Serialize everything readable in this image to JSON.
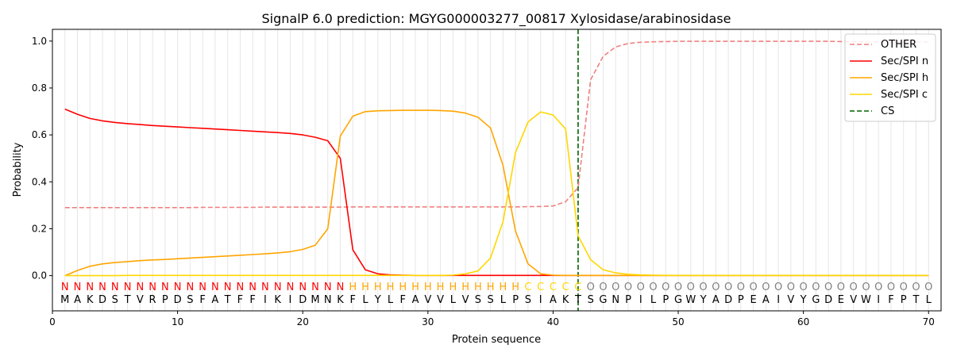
{
  "chart_data": {
    "type": "line",
    "title": "SignalP 6.0 prediction: MGYG000003277_00817 Xylosidase/arabinosidase",
    "xlabel": "Protein sequence",
    "ylabel": "Probability",
    "xlim": [
      0,
      71
    ],
    "ylim": [
      -0.15,
      1.05
    ],
    "x_ticks": [
      0,
      10,
      20,
      30,
      40,
      50,
      60,
      70
    ],
    "y_ticks": [
      0.0,
      0.2,
      0.4,
      0.6,
      0.8,
      1.0
    ],
    "y_tick_labels": [
      "0.0",
      "0.2",
      "0.4",
      "0.6",
      "0.8",
      "1.0"
    ],
    "grid": "vertical lines at each residue",
    "legend_position": "top-right",
    "sequence": [
      "M",
      "A",
      "K",
      "D",
      "S",
      "T",
      "V",
      "R",
      "P",
      "D",
      "S",
      "F",
      "A",
      "T",
      "F",
      "F",
      "I",
      "K",
      "I",
      "D",
      "M",
      "N",
      "K",
      "F",
      "L",
      "Y",
      "L",
      "F",
      "A",
      "V",
      "V",
      "L",
      "V",
      "S",
      "S",
      "L",
      "P",
      "S",
      "I",
      "A",
      "K",
      "T",
      "S",
      "G",
      "N",
      "P",
      "I",
      "L",
      "P",
      "G",
      "W",
      "Y",
      "A",
      "D",
      "P",
      "E",
      "A",
      "I",
      "V",
      "Y",
      "G",
      "D",
      "E",
      "V",
      "W",
      "I",
      "F",
      "P",
      "T",
      "L"
    ],
    "region_labels": [
      "N",
      "N",
      "N",
      "N",
      "N",
      "N",
      "N",
      "N",
      "N",
      "N",
      "N",
      "N",
      "N",
      "N",
      "N",
      "N",
      "N",
      "N",
      "N",
      "N",
      "N",
      "N",
      "N",
      "H",
      "H",
      "H",
      "H",
      "H",
      "H",
      "H",
      "H",
      "H",
      "H",
      "H",
      "H",
      "H",
      "H",
      "C",
      "C",
      "C",
      "C",
      "C",
      "O",
      "O",
      "O",
      "O",
      "O",
      "O",
      "O",
      "O",
      "O",
      "O",
      "O",
      "O",
      "O",
      "O",
      "O",
      "O",
      "O",
      "O",
      "O",
      "O",
      "O",
      "O",
      "O",
      "O",
      "O",
      "O",
      "O",
      "O"
    ],
    "region_colors": {
      "N": "#ff0000",
      "H": "#ffa500",
      "C": "#ffd700",
      "O": "#808080"
    },
    "series": [
      {
        "name": "OTHER",
        "color": "#f08080",
        "dash": true,
        "values": [
          0.29,
          0.29,
          0.29,
          0.29,
          0.29,
          0.29,
          0.29,
          0.29,
          0.29,
          0.29,
          0.29,
          0.291,
          0.291,
          0.291,
          0.291,
          0.291,
          0.292,
          0.292,
          0.292,
          0.292,
          0.292,
          0.292,
          0.292,
          0.293,
          0.293,
          0.293,
          0.293,
          0.293,
          0.293,
          0.293,
          0.293,
          0.293,
          0.293,
          0.293,
          0.293,
          0.293,
          0.293,
          0.294,
          0.295,
          0.297,
          0.315,
          0.375,
          0.835,
          0.935,
          0.975,
          0.99,
          0.995,
          0.997,
          0.998,
          0.999,
          0.999,
          0.999,
          0.999,
          0.999,
          0.999,
          0.999,
          0.999,
          0.999,
          0.999,
          0.999,
          0.999,
          0.999,
          0.998,
          0.997,
          0.996,
          0.996,
          0.996,
          0.996,
          0.996,
          0.996
        ]
      },
      {
        "name": "Sec/SPI n",
        "color": "#ff0000",
        "dash": false,
        "values": [
          0.71,
          0.688,
          0.67,
          0.66,
          0.653,
          0.648,
          0.644,
          0.64,
          0.637,
          0.634,
          0.631,
          0.628,
          0.625,
          0.622,
          0.619,
          0.616,
          0.613,
          0.61,
          0.606,
          0.6,
          0.59,
          0.575,
          0.5,
          0.11,
          0.025,
          0.008,
          0.003,
          0.002,
          0.001,
          0.001,
          0.001,
          0.001,
          0.001,
          0.001,
          0.001,
          0.001,
          0.001,
          0.001,
          0.001,
          0.001,
          0.001,
          0.001,
          0.001,
          0.001,
          0.001,
          0.001,
          0.001,
          0.001,
          0.001,
          0.001,
          0.001,
          0.001,
          0.001,
          0.001,
          0.001,
          0.001,
          0.001,
          0.001,
          0.001,
          0.001,
          0.001,
          0.001,
          0.001,
          0.001,
          0.001,
          0.001,
          0.001,
          0.001,
          0.001,
          0.001
        ]
      },
      {
        "name": "Sec/SPI h",
        "color": "#ffa500",
        "dash": false,
        "values": [
          0.0,
          0.022,
          0.04,
          0.05,
          0.056,
          0.06,
          0.064,
          0.067,
          0.069,
          0.072,
          0.075,
          0.078,
          0.081,
          0.084,
          0.087,
          0.09,
          0.093,
          0.097,
          0.102,
          0.112,
          0.13,
          0.2,
          0.595,
          0.68,
          0.699,
          0.703,
          0.704,
          0.705,
          0.705,
          0.705,
          0.704,
          0.701,
          0.693,
          0.675,
          0.63,
          0.47,
          0.19,
          0.05,
          0.008,
          0.002,
          0.001,
          0.001,
          0.001,
          0.001,
          0.001,
          0.001,
          0.001,
          0.001,
          0.001,
          0.001,
          0.001,
          0.001,
          0.001,
          0.001,
          0.001,
          0.001,
          0.001,
          0.001,
          0.001,
          0.001,
          0.001,
          0.001,
          0.001,
          0.001,
          0.001,
          0.001,
          0.001,
          0.001,
          0.001,
          0.001
        ]
      },
      {
        "name": "Sec/SPI c",
        "color": "#ffd700",
        "dash": false,
        "values": [
          0.0,
          0.0,
          0.0,
          0.0,
          0.0,
          0.001,
          0.001,
          0.001,
          0.001,
          0.001,
          0.001,
          0.001,
          0.001,
          0.001,
          0.001,
          0.001,
          0.001,
          0.001,
          0.001,
          0.001,
          0.001,
          0.001,
          0.001,
          0.001,
          0.001,
          0.001,
          0.001,
          0.001,
          0.001,
          0.001,
          0.001,
          0.002,
          0.008,
          0.02,
          0.075,
          0.23,
          0.525,
          0.655,
          0.698,
          0.685,
          0.625,
          0.17,
          0.068,
          0.025,
          0.012,
          0.006,
          0.003,
          0.002,
          0.001,
          0.001,
          0.001,
          0.001,
          0.001,
          0.001,
          0.001,
          0.001,
          0.001,
          0.001,
          0.001,
          0.001,
          0.001,
          0.001,
          0.001,
          0.001,
          0.001,
          0.001,
          0.001,
          0.001,
          0.001,
          0.001
        ]
      }
    ],
    "cs": {
      "name": "CS",
      "x": 42,
      "color": "#006400"
    }
  }
}
